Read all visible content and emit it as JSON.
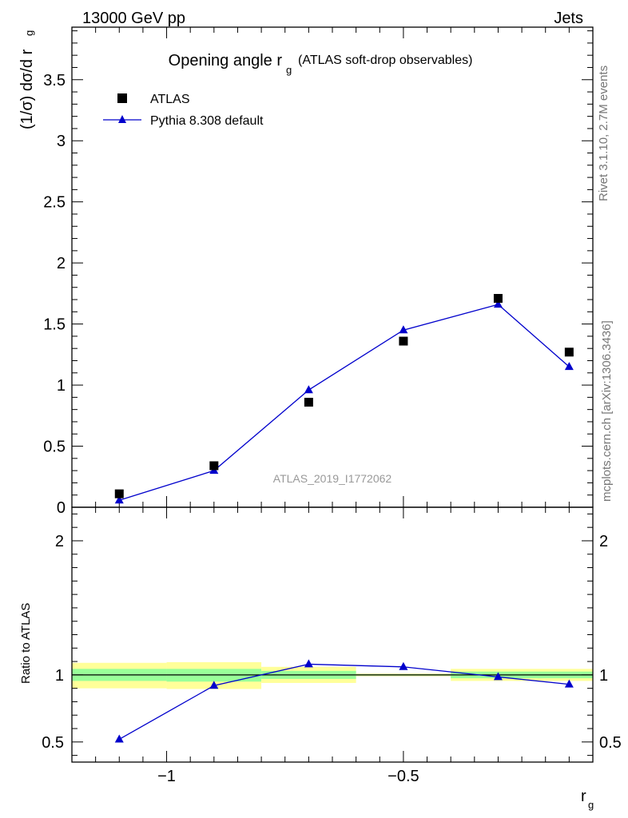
{
  "header": {
    "left": "13000 GeV pp",
    "right": "Jets"
  },
  "side_text": {
    "rivet": "Rivet 3.1.10,  2.7M events",
    "mcplots": "mcplots.cern.ch [arXiv:1306.3436]"
  },
  "colors": {
    "data_marker": "#000000",
    "mc_line": "#0000cc",
    "band_inner": "#99ff99",
    "band_outer": "#ffff99",
    "ref_line": "#000000"
  },
  "chart_data": [
    {
      "type": "scatter",
      "panel": "main",
      "title": "Opening angle r",
      "title_sub": "g",
      "title_suffix": "(ATLAS soft-drop observables)",
      "ylabel": "(1/σ) dσ/d r",
      "ylabel_sub": "g",
      "analysis_label": "ATLAS_2019_I1772062",
      "xlim": [
        -1.2,
        -0.1
      ],
      "ylim": [
        0,
        3.93
      ],
      "yticks": [
        {
          "v": 0,
          "label": "0"
        },
        {
          "v": 0.5,
          "label": "0.5"
        },
        {
          "v": 1,
          "label": "1"
        },
        {
          "v": 1.5,
          "label": "1.5"
        },
        {
          "v": 2,
          "label": "2"
        },
        {
          "v": 2.5,
          "label": "2.5"
        },
        {
          "v": 3,
          "label": "3"
        },
        {
          "v": 3.5,
          "label": "3.5"
        }
      ],
      "legend_position": "top-left",
      "series": [
        {
          "name": "ATLAS",
          "marker": "square",
          "x": [
            -1.1,
            -0.9,
            -0.7,
            -0.5,
            -0.3,
            -0.15
          ],
          "y": [
            0.11,
            0.34,
            0.86,
            1.36,
            1.71,
            1.27
          ]
        },
        {
          "name": "Pythia 8.308 default",
          "marker": "triangle",
          "line": true,
          "x": [
            -1.1,
            -0.9,
            -0.7,
            -0.5,
            -0.3,
            -0.15
          ],
          "y": [
            0.057,
            0.3,
            0.96,
            1.45,
            1.66,
            1.15
          ]
        }
      ]
    },
    {
      "type": "line",
      "panel": "ratio",
      "ylabel": "Ratio to ATLAS",
      "xlabel": "r",
      "xlabel_sub": "g",
      "xlim": [
        -1.2,
        -0.1
      ],
      "ylim": [
        0.35,
        2.25
      ],
      "xticks": [
        {
          "v": -1,
          "label": "−1"
        },
        {
          "v": -0.5,
          "label": "−0.5"
        }
      ],
      "yticks": [
        {
          "v": 0.5,
          "label": "0.5"
        },
        {
          "v": 1,
          "label": "1"
        },
        {
          "v": 2,
          "label": "2"
        }
      ],
      "bands": [
        {
          "x0": -1.2,
          "x1": -1.0,
          "inner": [
            0.955,
            1.045
          ],
          "outer": [
            0.9,
            1.09
          ]
        },
        {
          "x0": -1.0,
          "x1": -0.8,
          "inner": [
            0.95,
            1.045
          ],
          "outer": [
            0.895,
            1.095
          ]
        },
        {
          "x0": -0.8,
          "x1": -0.6,
          "inner": [
            0.97,
            1.03
          ],
          "outer": [
            0.94,
            1.06
          ]
        },
        {
          "x0": -0.6,
          "x1": -0.4,
          "inner": [
            0.995,
            1.005
          ],
          "outer": [
            0.99,
            1.01
          ]
        },
        {
          "x0": -0.4,
          "x1": -0.1,
          "inner": [
            0.975,
            1.025
          ],
          "outer": [
            0.955,
            1.045
          ]
        }
      ],
      "series": [
        {
          "name": "Pythia 8.308 default",
          "x": [
            -1.1,
            -0.9,
            -0.7,
            -0.5,
            -0.3,
            -0.15
          ],
          "y": [
            0.52,
            0.92,
            1.08,
            1.06,
            0.985,
            0.93
          ],
          "yerr": [
            0.012,
            0,
            0,
            0,
            0,
            0
          ]
        }
      ]
    }
  ]
}
